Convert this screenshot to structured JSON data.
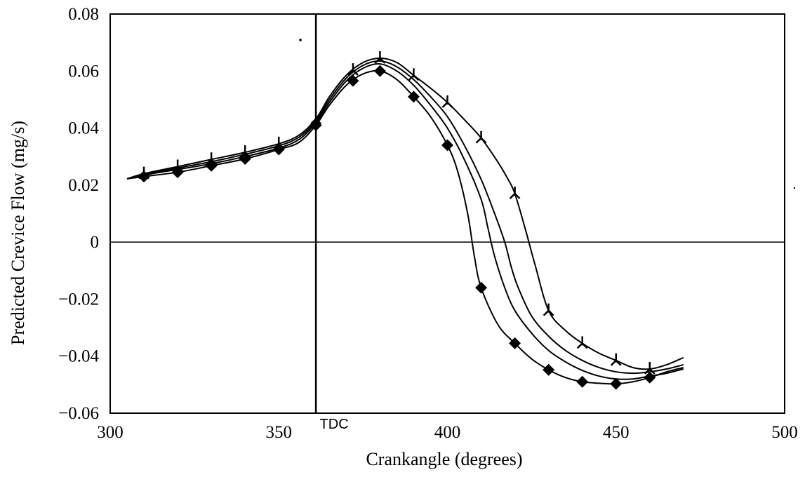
{
  "chart_data": {
    "type": "line",
    "xlabel": "Crankangle (degrees)",
    "ylabel": "Predicted Crevice Flow (mg/s)",
    "xlim": [
      300,
      500
    ],
    "ylim": [
      -0.06,
      0.08
    ],
    "x_ticks": [
      {
        "value": 300,
        "label": "300"
      },
      {
        "value": 350,
        "label": "350"
      },
      {
        "value": 400,
        "label": "400"
      },
      {
        "value": 450,
        "label": "450"
      },
      {
        "value": 500,
        "label": "500"
      }
    ],
    "y_ticks": [
      {
        "value": 0.08,
        "label": "0.08"
      },
      {
        "value": 0.06,
        "label": "0.06"
      },
      {
        "value": 0.04,
        "label": "0.04"
      },
      {
        "value": 0.02,
        "label": "0.02"
      },
      {
        "value": 0,
        "label": "0"
      },
      {
        "value": -0.02,
        "label": "−0.02"
      },
      {
        "value": -0.04,
        "label": "−0.04"
      },
      {
        "value": -0.06,
        "label": "−0.06"
      }
    ],
    "grid": false,
    "reference_lines": {
      "vertical_x": 361,
      "horizontal_y": 0
    },
    "annotations": [
      {
        "text": "TDC",
        "x": 361
      }
    ],
    "series": [
      {
        "marker": "diamond",
        "x": [
          305,
          310,
          320,
          330,
          340,
          350,
          356,
          361,
          365,
          370,
          375,
          380,
          385,
          390,
          395,
          400,
          403,
          406,
          408,
          410,
          415,
          420,
          425,
          430,
          435,
          440,
          445,
          450,
          455,
          460,
          465,
          470
        ],
        "y": [
          0.0222,
          0.023,
          0.0245,
          0.0268,
          0.0292,
          0.0325,
          0.035,
          0.041,
          0.048,
          0.055,
          0.059,
          0.06,
          0.057,
          0.051,
          0.044,
          0.034,
          0.025,
          0.01,
          -0.005,
          -0.016,
          -0.029,
          -0.0355,
          -0.041,
          -0.0448,
          -0.0475,
          -0.049,
          -0.0495,
          -0.0497,
          -0.049,
          -0.0475,
          -0.0455,
          -0.044
        ],
        "marker_x": [
          310,
          320,
          330,
          340,
          350,
          361,
          372,
          380,
          390,
          400,
          410,
          420,
          430,
          440,
          450,
          460
        ]
      },
      {
        "marker": "none",
        "x": [
          305,
          310,
          320,
          330,
          340,
          350,
          356,
          361,
          365,
          370,
          375,
          380,
          385,
          390,
          395,
          400,
          405,
          410,
          412,
          414,
          417,
          420,
          425,
          430,
          435,
          440,
          445,
          450,
          455,
          460,
          465,
          470
        ],
        "y": [
          0.0222,
          0.0235,
          0.0255,
          0.0275,
          0.03,
          0.033,
          0.036,
          0.0418,
          0.049,
          0.0565,
          0.061,
          0.0625,
          0.06,
          0.055,
          0.048,
          0.04,
          0.029,
          0.015,
          0.005,
          -0.005,
          -0.016,
          -0.024,
          -0.032,
          -0.038,
          -0.042,
          -0.045,
          -0.047,
          -0.048,
          -0.048,
          -0.047,
          -0.046,
          -0.0445
        ]
      },
      {
        "marker": "none",
        "x": [
          305,
          310,
          320,
          330,
          340,
          350,
          356,
          361,
          365,
          370,
          375,
          380,
          385,
          390,
          395,
          400,
          405,
          410,
          414,
          417,
          419,
          421,
          425,
          430,
          435,
          440,
          445,
          450,
          455,
          460,
          465,
          470
        ],
        "y": [
          0.0222,
          0.0237,
          0.026,
          0.0282,
          0.0308,
          0.0338,
          0.0368,
          0.0425,
          0.05,
          0.0575,
          0.062,
          0.0635,
          0.0615,
          0.057,
          0.051,
          0.044,
          0.034,
          0.022,
          0.01,
          0.0,
          -0.009,
          -0.016,
          -0.026,
          -0.033,
          -0.038,
          -0.0415,
          -0.044,
          -0.0455,
          -0.046,
          -0.0455,
          -0.0445,
          -0.043
        ]
      },
      {
        "marker": "cross",
        "x": [
          305,
          310,
          320,
          330,
          340,
          350,
          356,
          361,
          365,
          370,
          375,
          380,
          385,
          390,
          395,
          400,
          405,
          410,
          415,
          418,
          420,
          423,
          426,
          430,
          435,
          440,
          445,
          450,
          455,
          460,
          465,
          470
        ],
        "y": [
          0.0222,
          0.024,
          0.0265,
          0.029,
          0.0315,
          0.0345,
          0.0375,
          0.0432,
          0.051,
          0.0585,
          0.063,
          0.0645,
          0.063,
          0.0585,
          0.054,
          0.049,
          0.043,
          0.0365,
          0.028,
          0.022,
          0.017,
          0.005,
          -0.008,
          -0.024,
          -0.031,
          -0.0355,
          -0.039,
          -0.0415,
          -0.044,
          -0.0445,
          -0.043,
          -0.0405
        ],
        "marker_x": [
          310,
          320,
          330,
          340,
          350,
          361,
          372,
          380,
          390,
          400,
          410,
          420,
          430,
          440,
          450,
          460
        ]
      }
    ]
  }
}
